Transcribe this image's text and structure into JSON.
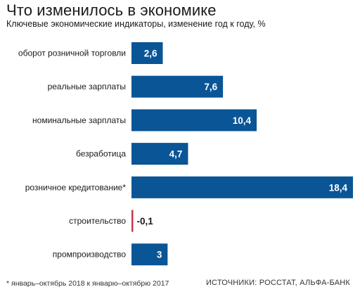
{
  "header": {
    "title": "Что изменилось в экономике",
    "subtitle": "Ключевые экономические индикаторы, изменение год к году, %"
  },
  "footer": {
    "footnote": "* январь–октябрь 2018 к январю–октябрю 2017",
    "sources": "ИСТОЧНИКИ: РОССТАТ, АЛЬФА-БАНК"
  },
  "colors": {
    "positive": "#0a5596",
    "negative": "#c8364c"
  },
  "chart_data": {
    "type": "bar",
    "orientation": "horizontal",
    "title": "Что изменилось в экономике",
    "subtitle": "Ключевые экономические индикаторы, изменение год к году, %",
    "categories": [
      "оборот розничной торговли",
      "реальные зарплаты",
      "номинальные зарплаты",
      "безработица",
      "розничное кредитование*",
      "строительство",
      "промпроизводство"
    ],
    "values": [
      2.6,
      7.6,
      10.4,
      4.7,
      18.4,
      -0.1,
      3
    ],
    "value_labels": [
      "2,6",
      "7,6",
      "10,4",
      "4,7",
      "18,4",
      "-0,1",
      "3"
    ],
    "xlim": [
      0,
      18.4
    ],
    "grid": false,
    "legend": "none"
  }
}
